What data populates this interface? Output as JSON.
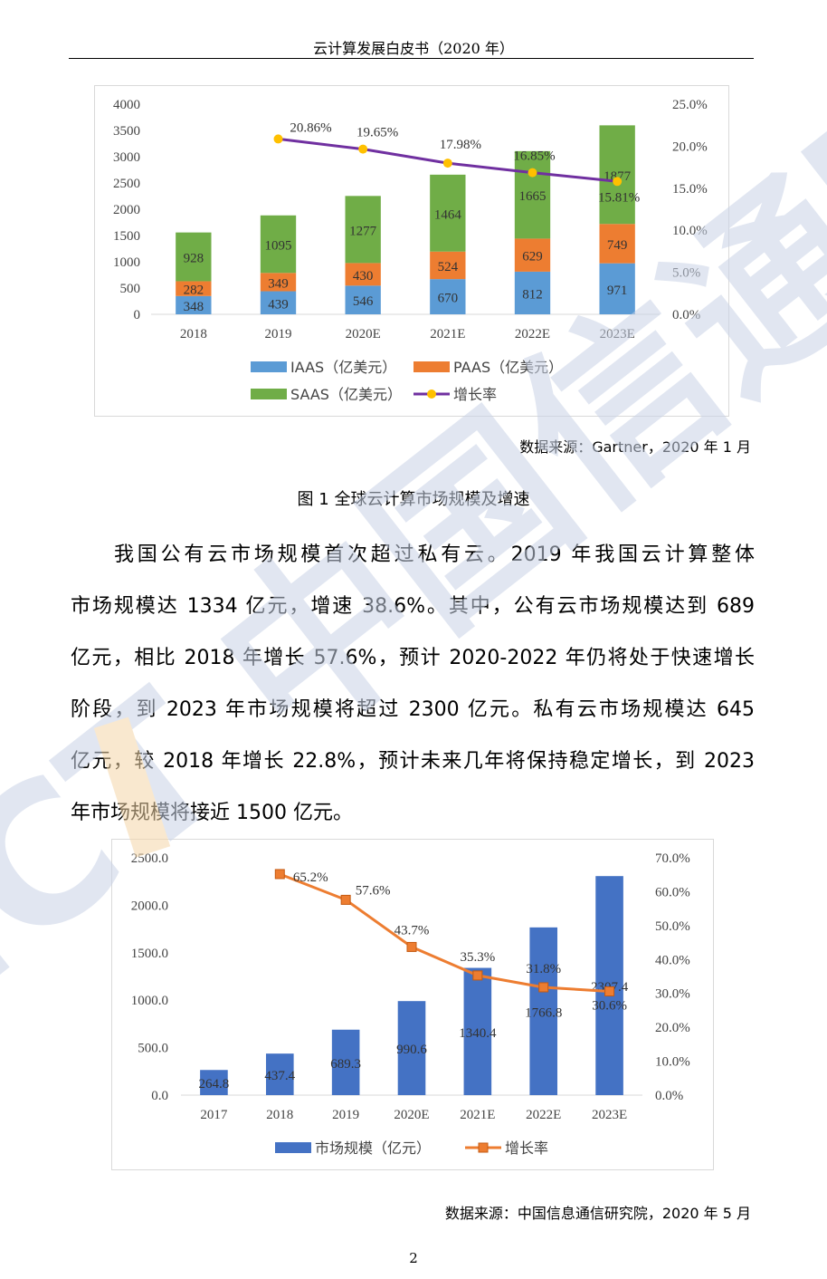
{
  "header": {
    "title": "云计算发展白皮书（2020 年）"
  },
  "figure1": {
    "source": "数据来源：Gartner，2020 年 1 月",
    "caption": "图 1  全球云计算市场规模及增速"
  },
  "paragraph": {
    "lines": [
      "我国公有云市场规模首次超过私有云。2019 年我国云计算整体",
      "市场规模达 1334 亿元，增速 38.6%。其中，公有云市场规模达到 689",
      "亿元，相比 2018 年增长 57.6%，预计 2020-2022 年仍将处于快速增长",
      "阶段，到 2023 年市场规模将超过 2300 亿元。私有云市场规模达 645",
      "亿元，较 2018 年增长 22.8%，预计未来几年将保持稳定增长，到 2023",
      "年市场规模将接近 1500 亿元。"
    ]
  },
  "figure2": {
    "source": "数据来源：中国信息通信研究院，2020 年 5 月"
  },
  "page": {
    "number": "2"
  },
  "watermark": {
    "text": "CAICT 中国信通院",
    "color": "#c9d3e6",
    "accent": "#f5d7a8"
  },
  "chart_data": [
    {
      "type": "bar",
      "stacked": true,
      "categories": [
        "2018",
        "2019",
        "2020E",
        "2021E",
        "2022E",
        "2023E"
      ],
      "series": [
        {
          "name": "IAAS（亿美元）",
          "values": [
            348,
            439,
            546,
            670,
            812,
            971
          ],
          "color": "#5b9bd5"
        },
        {
          "name": "PAAS（亿美元）",
          "values": [
            282,
            349,
            430,
            524,
            629,
            749
          ],
          "color": "#ed7d31"
        },
        {
          "name": "SAAS（亿美元）",
          "values": [
            928,
            1095,
            1277,
            1464,
            1665,
            1877
          ],
          "color": "#70ad47"
        }
      ],
      "line_series": {
        "name": "增长率",
        "values": [
          null,
          20.86,
          19.65,
          17.98,
          16.85,
          15.81
        ],
        "labels": [
          "",
          "20.86%",
          "19.65%",
          "17.98%",
          "16.85%",
          "15.81%"
        ],
        "color": "#7030a0",
        "marker_color": "#ffc000"
      },
      "y_ticks": [
        "0",
        "500",
        "1000",
        "1500",
        "2000",
        "2500",
        "3000",
        "3500",
        "4000"
      ],
      "ylim": [
        0,
        4000
      ],
      "y2_ticks": [
        "0.0%",
        "5.0%",
        "10.0%",
        "15.0%",
        "20.0%",
        "25.0%"
      ],
      "y2lim": [
        0,
        25
      ],
      "legend_position": "bottom"
    },
    {
      "type": "bar",
      "categories": [
        "2017",
        "2018",
        "2019",
        "2020E",
        "2021E",
        "2022E",
        "2023E"
      ],
      "series": [
        {
          "name": "市场规模（亿元）",
          "values": [
            264.8,
            437.4,
            689.3,
            990.6,
            1340.4,
            1766.8,
            2307.4
          ],
          "labels": [
            "264.8",
            "437.4",
            "689.3",
            "990.6",
            "1340.4",
            "1766.8",
            "2307.4"
          ],
          "color": "#4472c4"
        }
      ],
      "line_series": {
        "name": "增长率",
        "values": [
          null,
          65.2,
          57.6,
          43.7,
          35.3,
          31.8,
          30.6
        ],
        "labels": [
          "",
          "65.2%",
          "57.6%",
          "43.7%",
          "35.3%",
          "31.8%",
          "30.6%"
        ],
        "color": "#ed7d31",
        "marker_color": "#ed7d31"
      },
      "y_ticks": [
        "0.0",
        "500.0",
        "1000.0",
        "1500.0",
        "2000.0",
        "2500.0"
      ],
      "ylim": [
        0,
        2500
      ],
      "y2_ticks": [
        "0.0%",
        "10.0%",
        "20.0%",
        "30.0%",
        "40.0%",
        "50.0%",
        "60.0%",
        "70.0%"
      ],
      "y2lim": [
        0,
        70
      ],
      "legend_position": "bottom"
    }
  ]
}
